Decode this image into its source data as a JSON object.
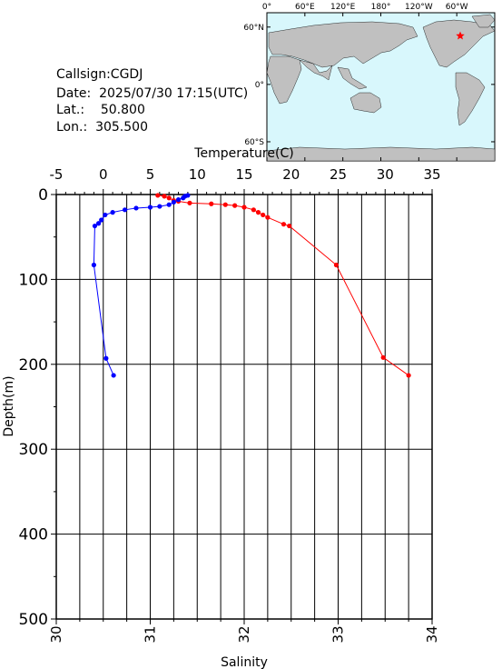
{
  "station": {
    "callsign_label": "Callsign:",
    "callsign": "CGDJ",
    "date_label": "Date:",
    "date": "2025/07/30 17:15(UTC)",
    "lat_label": "Lat.:",
    "lat": "50.800",
    "lon_label": "Lon.:",
    "lon": "305.500"
  },
  "map": {
    "lon_ticks": [
      "0°",
      "60°E",
      "120°E",
      "180°",
      "120°W",
      "60°W"
    ],
    "lat_ticks": [
      "60°N",
      "0°",
      "60°S"
    ],
    "marker": {
      "lon": 305.5,
      "lat": 50.8
    },
    "ocean_color": "#d8f7fc",
    "land_color": "#c0c0c0",
    "marker_color": "#ff0000"
  },
  "chart_data": {
    "type": "line",
    "ylabel": "Depth(m)",
    "y_ticks": [
      "0",
      "100",
      "200",
      "300",
      "400",
      "500"
    ],
    "ylim": [
      0,
      500
    ],
    "y_inverted": true,
    "grid": true,
    "top_axis": {
      "label": "Temperature(C)",
      "ticks": [
        "-5",
        "0",
        "5",
        "10",
        "15",
        "20",
        "25",
        "30",
        "35"
      ],
      "range": [
        -5,
        35
      ]
    },
    "bottom_axis": {
      "label": "Salinity",
      "ticks": [
        "30",
        "31",
        "32",
        "33",
        "34"
      ],
      "range": [
        30,
        34
      ]
    },
    "series": [
      {
        "axis": "top",
        "color": "#ff0000",
        "points": [
          [
            5.8,
            1
          ],
          [
            6.5,
            2
          ],
          [
            7.0,
            4
          ],
          [
            7.5,
            7
          ],
          [
            8.0,
            8
          ],
          [
            9.2,
            10
          ],
          [
            11.5,
            11
          ],
          [
            13.0,
            12
          ],
          [
            14.0,
            13
          ],
          [
            15.0,
            15
          ],
          [
            16.0,
            18
          ],
          [
            16.5,
            21
          ],
          [
            17.0,
            24
          ],
          [
            17.5,
            27
          ],
          [
            19.2,
            35
          ],
          [
            19.8,
            37
          ],
          [
            24.8,
            83
          ],
          [
            29.8,
            192
          ],
          [
            32.5,
            213
          ]
        ]
      },
      {
        "axis": "bottom",
        "color": "#0000ff",
        "points": [
          [
            31.4,
            1
          ],
          [
            31.37,
            2
          ],
          [
            31.35,
            4
          ],
          [
            31.3,
            6
          ],
          [
            31.25,
            9
          ],
          [
            31.2,
            12
          ],
          [
            31.1,
            14
          ],
          [
            31.0,
            15
          ],
          [
            30.85,
            16
          ],
          [
            30.73,
            18
          ],
          [
            30.6,
            21
          ],
          [
            30.52,
            24
          ],
          [
            30.48,
            30
          ],
          [
            30.45,
            34
          ],
          [
            30.41,
            37
          ],
          [
            30.4,
            83
          ],
          [
            30.53,
            193
          ],
          [
            30.61,
            213
          ]
        ]
      }
    ]
  }
}
